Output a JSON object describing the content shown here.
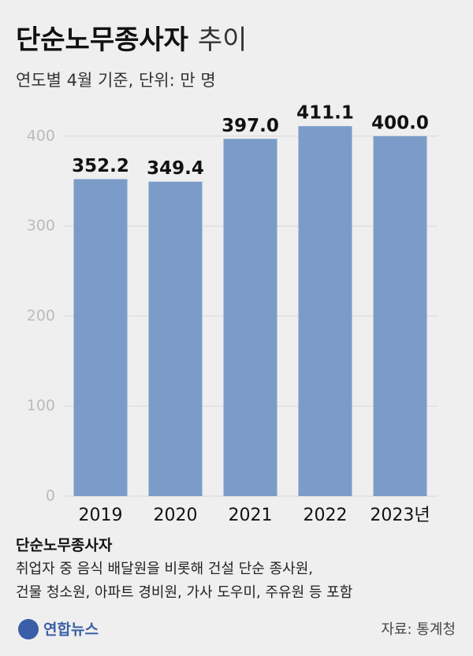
{
  "chart_data": {
    "type": "bar",
    "title_main": "단순노무종사자",
    "title_suffix": "추이",
    "subtitle": "연도별 4월 기준, 단위: 만 명",
    "categories": [
      "2019",
      "2020",
      "2021",
      "2022",
      "2023년"
    ],
    "values": [
      352.2,
      349.4,
      397.0,
      411.1,
      400.0
    ],
    "value_labels": [
      "352.2",
      "349.4",
      "397.0",
      "411.1",
      "400.0"
    ],
    "color": "#7b9cc8",
    "ylim": [
      0,
      420
    ],
    "yticks": [
      0,
      100,
      200,
      300,
      400
    ],
    "grid": true
  },
  "note": {
    "heading": "단순노무종사자",
    "lines": [
      "취업자 중 음식 배달원을 비롯해 건설 단순 종사원,",
      "건물 청소원, 아파트 경비원, 가사 도우미, 주유원 등 포함"
    ]
  },
  "footer": {
    "logo": "연합뉴스",
    "source": "자료: 통계청"
  }
}
